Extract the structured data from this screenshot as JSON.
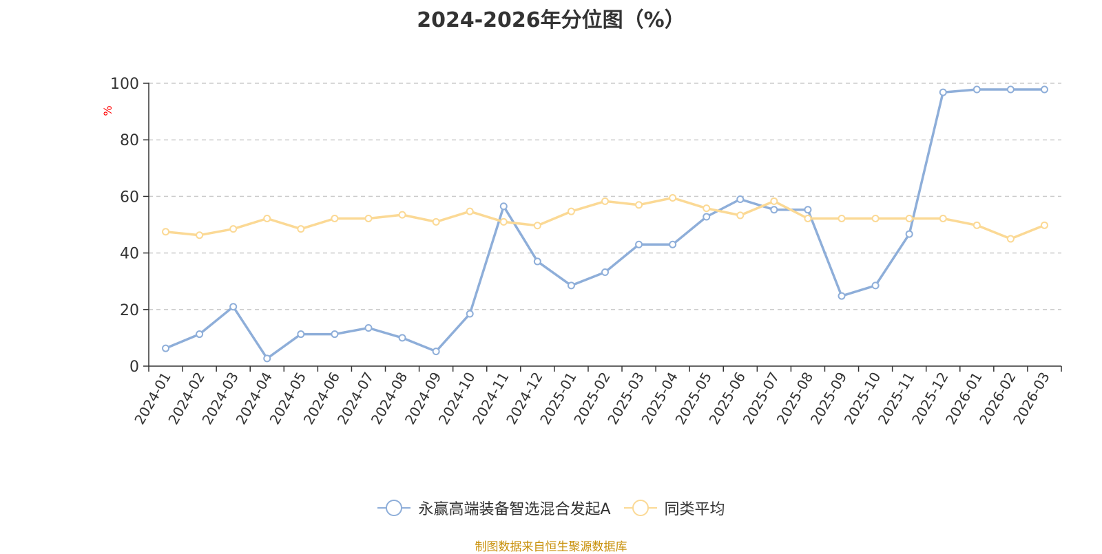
{
  "chart_data": {
    "type": "line",
    "title": "2024-2026年分位图（%）",
    "ylabel": "%",
    "xlabel": "",
    "ylim": [
      0,
      100
    ],
    "yticks": [
      0,
      20,
      40,
      60,
      80,
      100
    ],
    "grid": true,
    "legend_position": "bottom",
    "categories": [
      "2024-01",
      "2024-02",
      "2024-03",
      "2024-04",
      "2024-05",
      "2024-06",
      "2024-07",
      "2024-08",
      "2024-09",
      "2024-10",
      "2024-11",
      "2024-12",
      "2025-01",
      "2025-02",
      "2025-03",
      "2025-04",
      "2025-05",
      "2025-06",
      "2025-07",
      "2025-08",
      "2025-09",
      "2025-10",
      "2025-11",
      "2025-12",
      "2026-01",
      "2026-02",
      "2026-03"
    ],
    "series": [
      {
        "name": "永赢高端装备智选混合发起A",
        "color": "#8eaed9",
        "values": [
          6.3,
          11.3,
          21.0,
          2.7,
          11.3,
          11.3,
          13.5,
          10.0,
          5.2,
          18.5,
          56.5,
          37.0,
          28.5,
          33.2,
          43.0,
          43.0,
          52.8,
          59.0,
          55.3,
          55.3,
          24.8,
          28.5,
          46.7,
          96.8,
          97.8,
          97.8,
          97.8
        ]
      },
      {
        "name": "同类平均",
        "color": "#fbd995",
        "values": [
          47.5,
          46.3,
          48.5,
          52.2,
          48.5,
          52.2,
          52.2,
          53.5,
          51.0,
          54.7,
          51.0,
          49.7,
          54.7,
          58.3,
          57.0,
          59.5,
          55.8,
          53.3,
          58.3,
          52.2,
          52.2,
          52.2,
          52.2,
          52.2,
          49.8,
          45.0,
          49.8
        ]
      }
    ]
  },
  "source_note": "制图数据来自恒生聚源数据库",
  "colors": {
    "axis": "#333333",
    "grid": "#cccccc",
    "ylabel": "#ff0000",
    "source_note": "#c8900a"
  }
}
